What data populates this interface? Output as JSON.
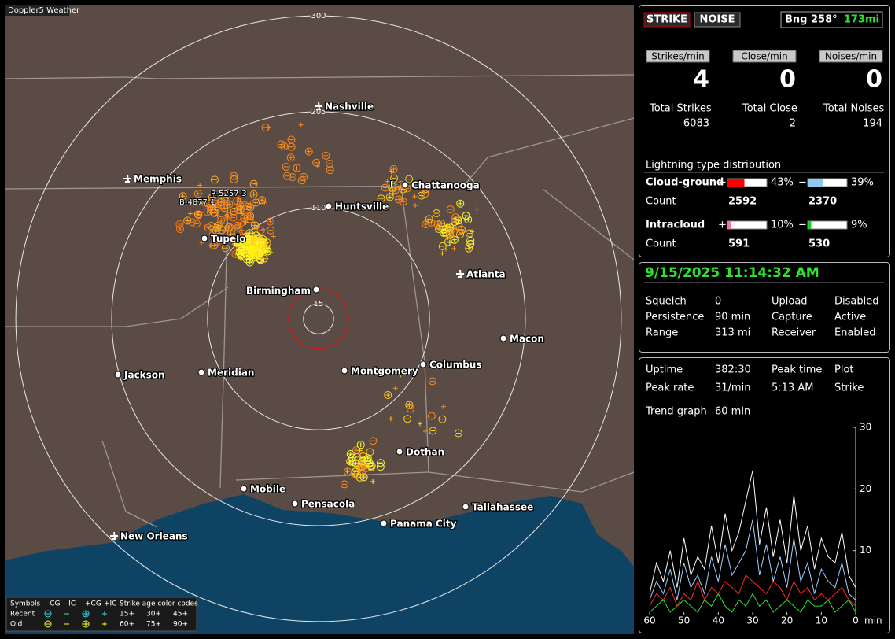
{
  "app": {
    "title": "Doppler5 Weather"
  },
  "map": {
    "rings": [
      300,
      205,
      110,
      15
    ],
    "cities": [
      "Nashville",
      "Memphis",
      "Chattanooga",
      "Huntsville",
      "Tupelo",
      "Birmingham",
      "Atlanta",
      "Macon",
      "Jackson",
      "Meridian",
      "Montgomery",
      "Columbus",
      "Dothan",
      "Mobile",
      "Pensacola",
      "Tallahassee",
      "Panama City",
      "New Orleans"
    ],
    "station_labels": [
      "R-5257-3",
      "B-4877-1",
      "H-"
    ]
  },
  "legend": {
    "symbols_label": "Symbols",
    "types": [
      "-CG",
      "-IC",
      "+CG",
      "+IC"
    ],
    "age_label": "Strike age color codes",
    "rows": [
      "Recent",
      "Old"
    ],
    "ages": [
      [
        "15+",
        "30+",
        "45+"
      ],
      [
        "60+",
        "75+",
        "90+"
      ]
    ]
  },
  "mode_buttons": [
    "STRIKE",
    "NOISE"
  ],
  "bearing": {
    "label": "Bng 258°",
    "distance": "173mi"
  },
  "rates": [
    {
      "label": "Strikes/min",
      "value": 4
    },
    {
      "label": "Close/min",
      "value": 0
    },
    {
      "label": "Noises/min",
      "value": 0
    }
  ],
  "totals": [
    {
      "label": "Total Strikes",
      "value": 6083
    },
    {
      "label": "Total Close",
      "value": 2
    },
    {
      "label": "Total Noises",
      "value": 194
    }
  ],
  "distribution": {
    "title": "Lightning type distribution",
    "count_label": "Count",
    "pos_sign": "+",
    "neg_sign": "−",
    "rows": [
      {
        "label": "Cloud-ground",
        "pos": {
          "value": 43,
          "label": "43%"
        },
        "neg": {
          "value": 39,
          "label": "39%"
        },
        "pos_count": 2592,
        "neg_count": 2370
      },
      {
        "label": "Intracloud",
        "pos": {
          "value": 10,
          "label": "10%"
        },
        "neg": {
          "value": 9,
          "label": "9%"
        },
        "pos_count": 591,
        "neg_count": 530
      }
    ]
  },
  "status": {
    "datetime": "9/15/2025 11:14:32 AM",
    "rows": [
      [
        "Squelch",
        "0",
        "Upload",
        "Disabled"
      ],
      [
        "Persistence",
        "90 min",
        "Capture",
        "Active"
      ],
      [
        "Range",
        "313 mi",
        "Receiver",
        "Enabled"
      ]
    ]
  },
  "stats": {
    "rows": [
      [
        "Uptime",
        "382:30",
        "Peak time",
        "Plot"
      ],
      [
        "Peak rate",
        "31/min",
        "5:13 AM",
        "Strike"
      ]
    ],
    "trend_label": "Trend graph",
    "trend_window": "60 min"
  },
  "trend": {
    "x": [
      60,
      58,
      56,
      54,
      52,
      50,
      48,
      46,
      44,
      42,
      40,
      38,
      36,
      34,
      32,
      30,
      28,
      26,
      24,
      22,
      20,
      18,
      16,
      14,
      12,
      10,
      8,
      6,
      4,
      2,
      0
    ],
    "xlim": [
      60,
      0
    ],
    "xticks": [
      60,
      50,
      40,
      30,
      20,
      10,
      0
    ],
    "x_unit": "min",
    "ylim": [
      0,
      30
    ],
    "yticks": [
      10,
      20,
      30
    ],
    "series": [
      {
        "color": "#ffffff",
        "values": [
          3,
          8,
          5,
          10,
          4,
          12,
          6,
          9,
          7,
          14,
          8,
          16,
          10,
          13,
          18,
          23,
          11,
          17,
          9,
          15,
          8,
          19,
          10,
          14,
          7,
          12,
          9,
          8,
          13,
          6,
          4
        ]
      },
      {
        "color": "#9fd0ff",
        "values": [
          2,
          5,
          3,
          7,
          2,
          8,
          4,
          6,
          3,
          9,
          5,
          11,
          6,
          8,
          10,
          15,
          6,
          11,
          5,
          9,
          4,
          12,
          5,
          8,
          3,
          7,
          5,
          4,
          8,
          3,
          2
        ]
      },
      {
        "color": "#ff2a2a",
        "values": [
          1,
          3,
          2,
          4,
          1,
          3,
          2,
          5,
          2,
          4,
          3,
          5,
          4,
          3,
          6,
          5,
          4,
          3,
          5,
          4,
          2,
          5,
          3,
          4,
          2,
          3,
          2,
          3,
          4,
          2,
          1
        ]
      },
      {
        "color": "#2de32d",
        "values": [
          0,
          1,
          2,
          0,
          1,
          2,
          1,
          0,
          2,
          1,
          3,
          1,
          0,
          2,
          1,
          3,
          1,
          2,
          0,
          1,
          2,
          1,
          0,
          2,
          1,
          1,
          2,
          0,
          1,
          2,
          0
        ]
      }
    ]
  }
}
